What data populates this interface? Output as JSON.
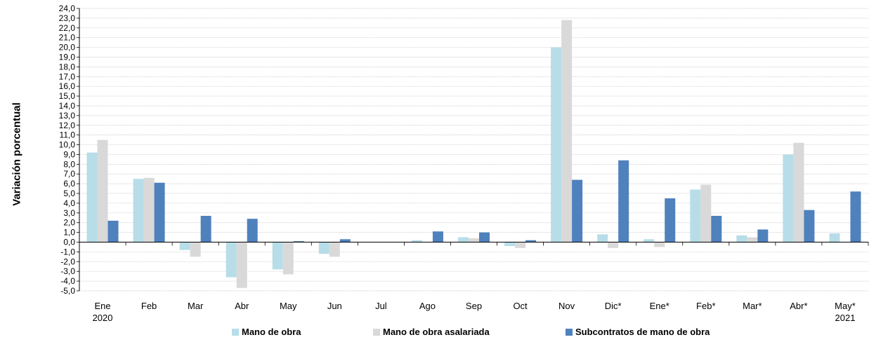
{
  "chart_data": {
    "type": "bar",
    "ylabel": "Variación porcentual",
    "ylim": [
      -5,
      24
    ],
    "ytick_step": 1,
    "categories": [
      "Ene",
      "Feb",
      "Mar",
      "Abr",
      "May",
      "Jun",
      "Jul",
      "Ago",
      "Sep",
      "Oct",
      "Nov",
      "Dic*",
      "Ene*",
      "Feb*",
      "Mar*",
      "Abr*",
      "May*"
    ],
    "year_labels": [
      {
        "category_index": 0,
        "text": "2020"
      },
      {
        "category_index": 16,
        "text": "2021"
      }
    ],
    "series": [
      {
        "name": "Mano de obra",
        "color": "#b7dde8",
        "values": [
          9.2,
          6.5,
          -0.8,
          -3.6,
          -2.8,
          -1.2,
          0.0,
          0.2,
          0.5,
          -0.4,
          20.0,
          0.8,
          0.3,
          5.4,
          0.7,
          9.0,
          0.9
        ]
      },
      {
        "name": "Mano de obra asalariada",
        "color": "#d9d9d9",
        "values": [
          10.5,
          6.6,
          -1.5,
          -4.7,
          -3.3,
          -1.5,
          0.0,
          0.0,
          0.4,
          -0.6,
          22.8,
          -0.6,
          -0.5,
          5.9,
          0.5,
          10.2,
          0.0
        ]
      },
      {
        "name": "Subcontratos de mano de obra",
        "color": "#4f81bd",
        "values": [
          2.2,
          6.1,
          2.7,
          2.4,
          0.1,
          0.3,
          0.0,
          1.1,
          1.0,
          0.2,
          6.4,
          8.4,
          4.5,
          2.7,
          1.3,
          3.3,
          5.2
        ]
      }
    ],
    "grid": true,
    "legend_position": "bottom"
  }
}
